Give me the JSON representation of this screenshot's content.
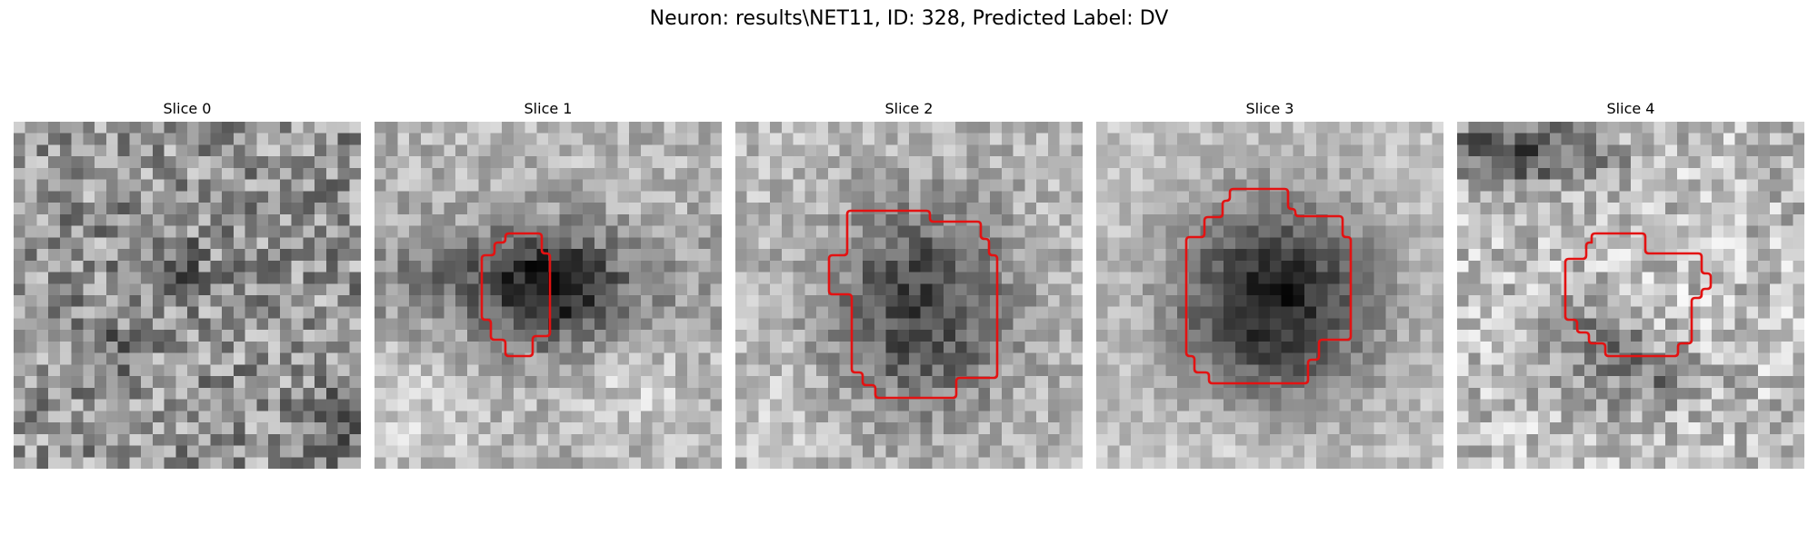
{
  "figure": {
    "title": "Neuron: results\\NET11, ID: 328, Predicted Label: DV"
  },
  "colors": {
    "contour": "#e31212"
  },
  "grid_size": 30,
  "slices": [
    {
      "label": "Slice 0",
      "has_contour": false
    },
    {
      "label": "Slice 1",
      "has_contour": true
    },
    {
      "label": "Slice 2",
      "has_contour": true
    },
    {
      "label": "Slice 3",
      "has_contour": true
    },
    {
      "label": "Slice 4",
      "has_contour": true
    }
  ]
}
